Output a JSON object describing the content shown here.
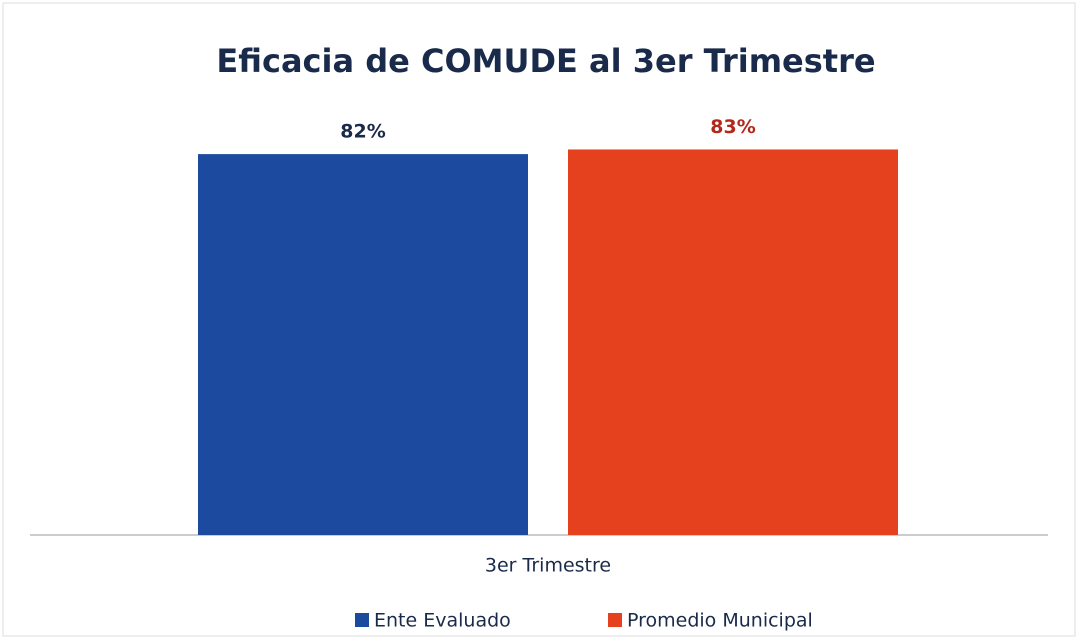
{
  "chart_data": {
    "type": "bar",
    "title": "Eficacia de COMUDE al 3er Trimestre",
    "categories": [
      "3er Trimestre"
    ],
    "series": [
      {
        "name": "Ente Evaluado",
        "color": "#1b4a9e",
        "label_color": "#1a2a4a",
        "values": [
          82
        ],
        "value_labels": [
          "82%"
        ]
      },
      {
        "name": "Promedio Municipal",
        "color": "#e6411f",
        "label_color": "#b2281b",
        "values": [
          83
        ],
        "value_labels": [
          "83%"
        ]
      }
    ],
    "legend": "bottom"
  }
}
